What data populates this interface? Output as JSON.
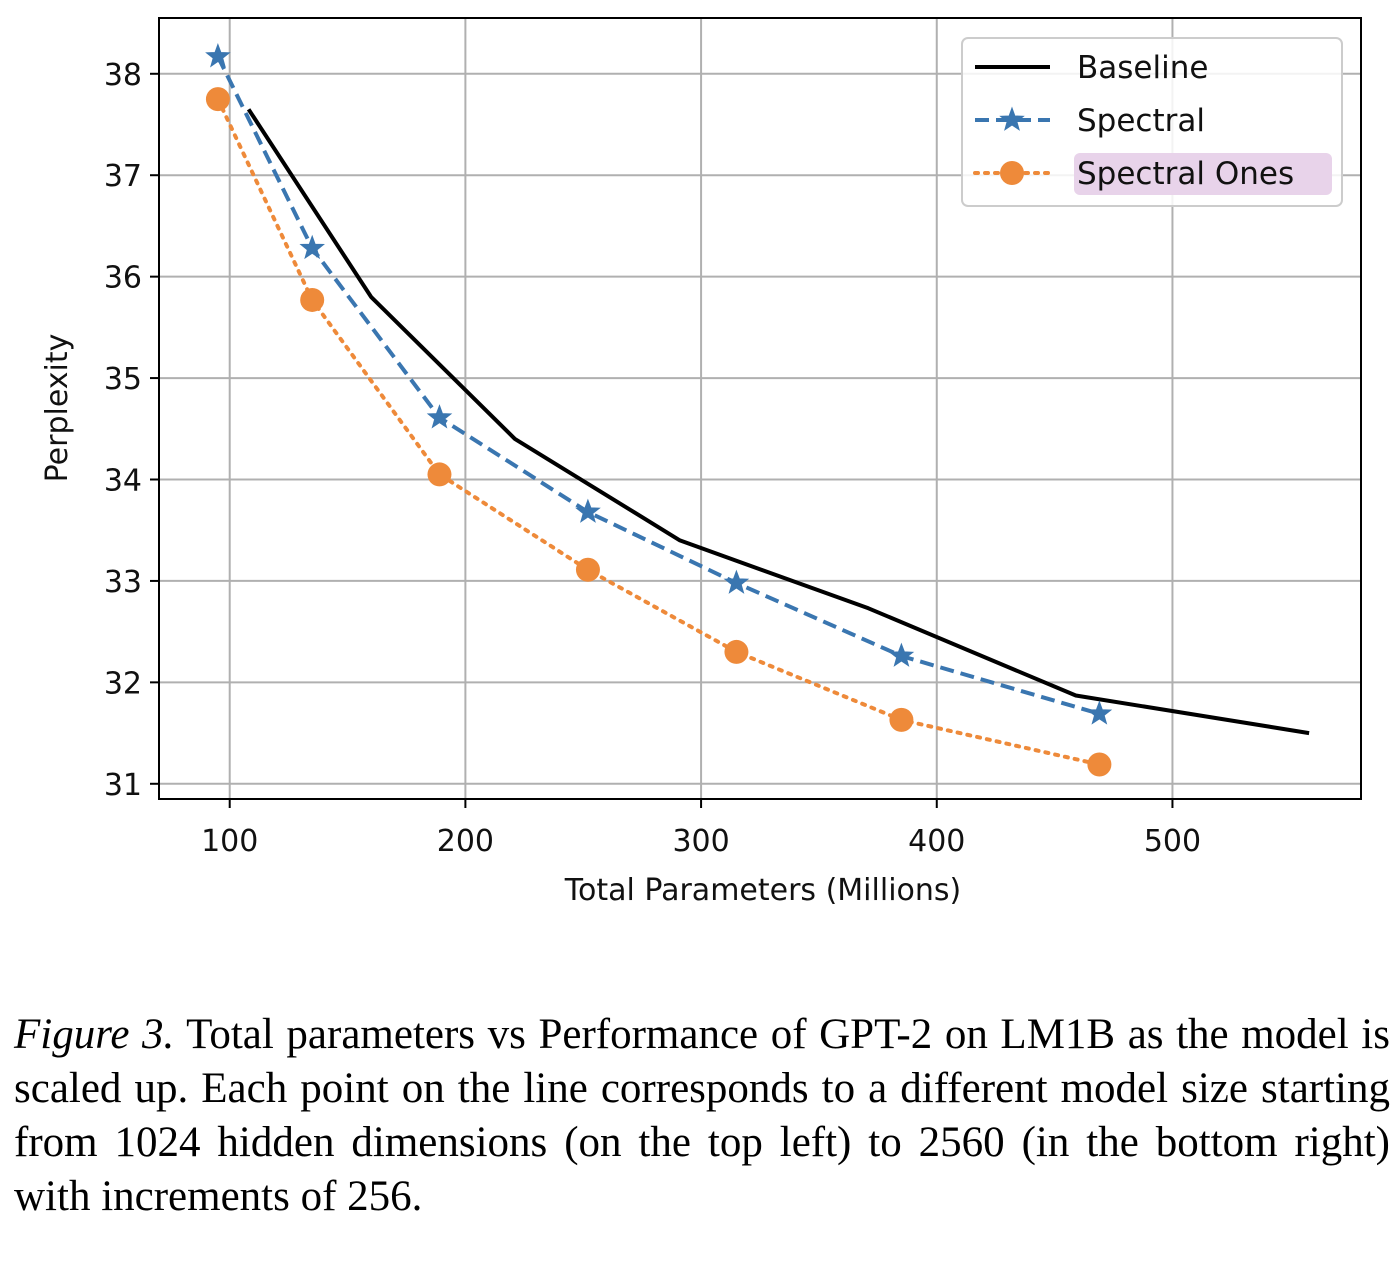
{
  "chart_data": {
    "type": "line",
    "xlabel": "Total Parameters (Millions)",
    "ylabel": "Perplexity",
    "xlim": [
      70,
      580
    ],
    "ylim": [
      30.85,
      38.55
    ],
    "xticks": [
      100,
      200,
      300,
      400,
      500
    ],
    "yticks": [
      31,
      32,
      33,
      34,
      35,
      36,
      37,
      38
    ],
    "grid": true,
    "legend_position": "top-right",
    "series": [
      {
        "name": "Baseline",
        "color": "#000000",
        "style": "solid",
        "marker": "none",
        "x": [
          108,
          160,
          221,
          291,
          371,
          459,
          558
        ],
        "y": [
          37.65,
          35.8,
          34.4,
          33.4,
          32.73,
          31.87,
          31.5
        ]
      },
      {
        "name": "Spectral",
        "color": "#3a76b0",
        "style": "dashed",
        "marker": "star",
        "x": [
          95,
          135,
          189,
          252,
          315,
          385,
          469
        ],
        "y": [
          38.17,
          36.28,
          34.61,
          33.68,
          32.98,
          32.26,
          31.69
        ]
      },
      {
        "name": "Spectral Ones",
        "color": "#ee8a3a",
        "style": "dotted",
        "marker": "circle",
        "x": [
          95,
          135,
          189,
          252,
          315,
          385,
          469
        ],
        "y": [
          37.75,
          35.77,
          34.05,
          33.11,
          32.3,
          31.63,
          31.19
        ]
      }
    ]
  },
  "caption": {
    "label": "Figure 3.",
    "text": " Total parameters vs Performance of GPT-2 on LM1B as the model is scaled up. Each point on the line corresponds to a different model size starting from 1024 hidden dimensions (on the top left) to 2560 (in the bottom right) with increments of 256."
  }
}
